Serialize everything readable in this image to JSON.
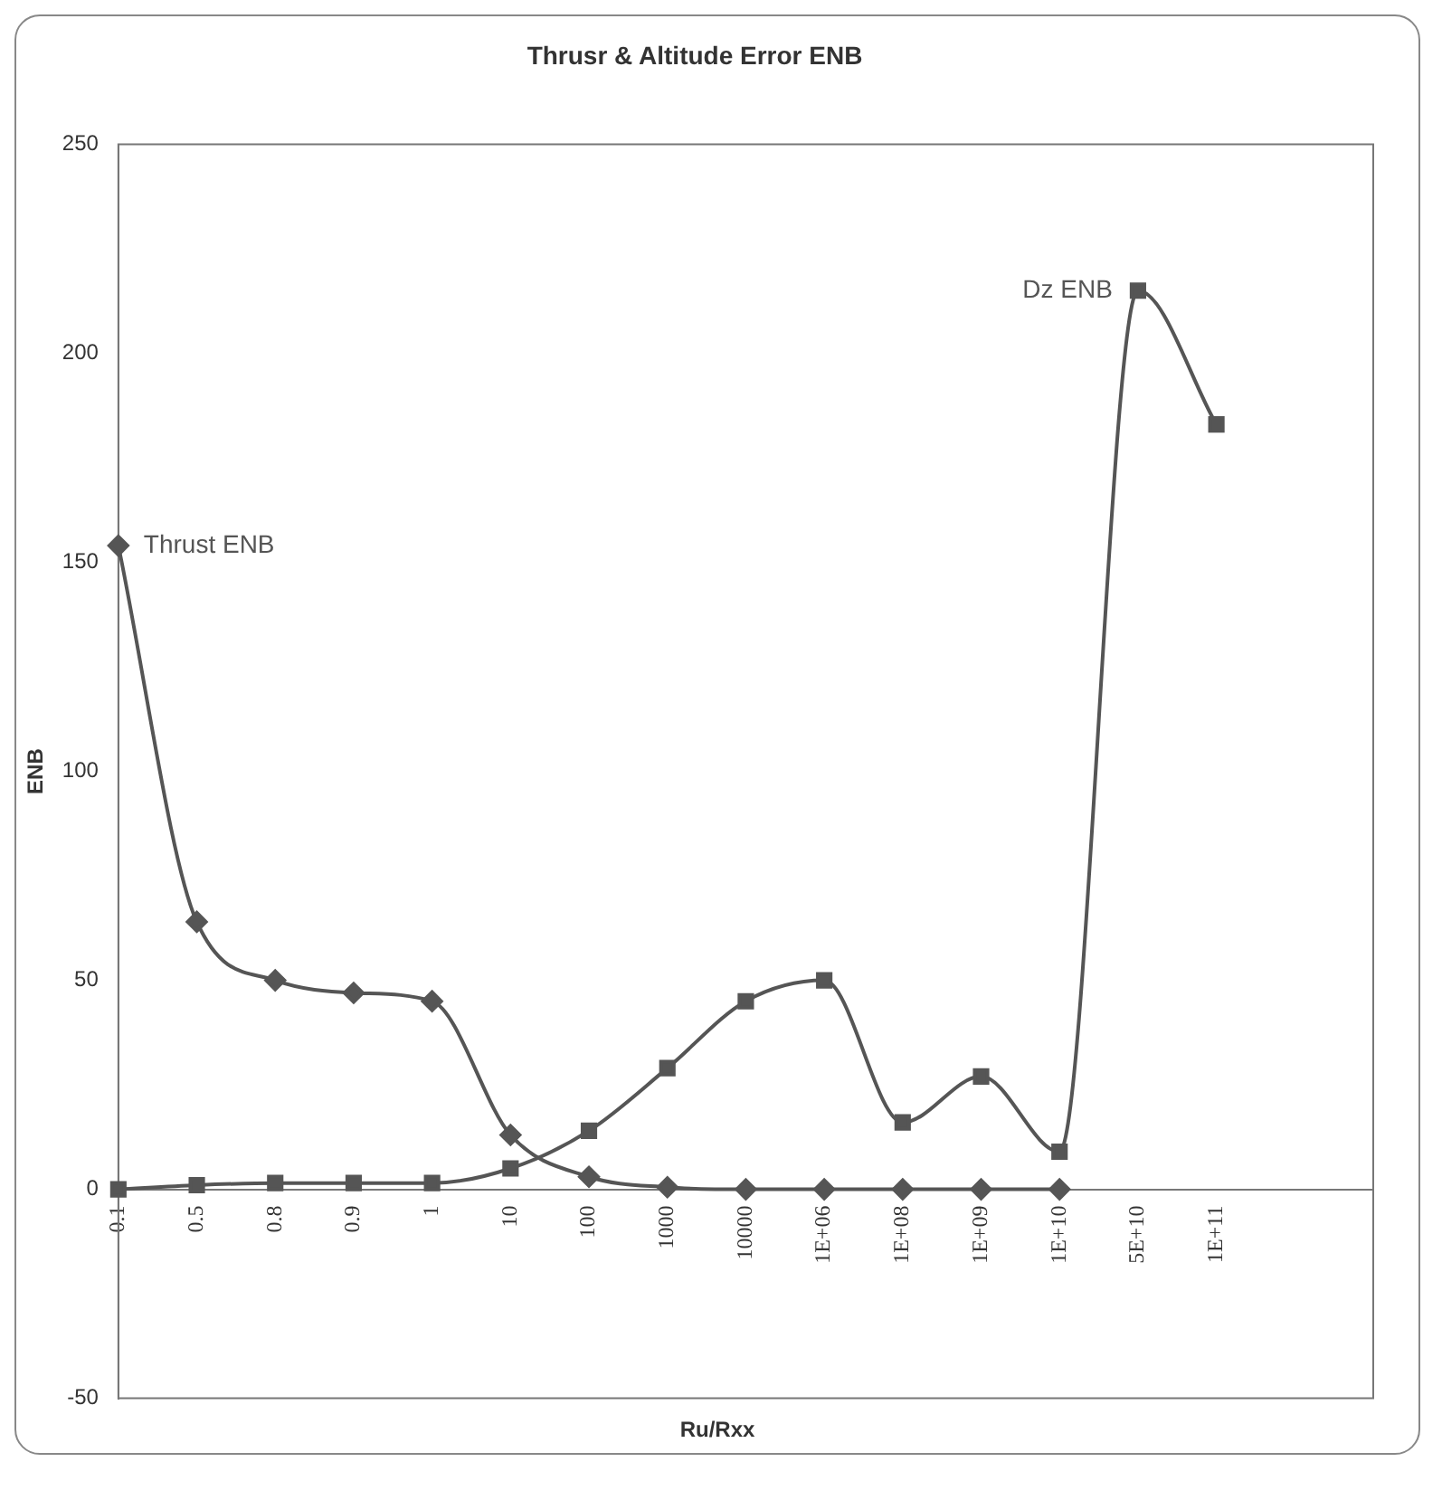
{
  "chart_data": {
    "type": "line",
    "title": "Thrusr & Altitude Error ENB",
    "xlabel": "Ru/Rxx",
    "ylabel": "ENB",
    "categories": [
      "0.1",
      "0.5",
      "0.8",
      "0.9",
      "1",
      "10",
      "100",
      "1000",
      "10000",
      "1E+06",
      "1E+08",
      "1E+09",
      "1E+10",
      "5E+10",
      "1E+11",
      null,
      null
    ],
    "series": [
      {
        "name": "Thrust ENB",
        "color": "#555555",
        "marker": "diamond",
        "values": [
          154,
          64,
          50,
          47,
          45,
          13,
          3,
          0.5,
          0,
          0,
          0,
          0,
          0,
          null,
          null,
          null,
          null
        ]
      },
      {
        "name": "Dz ENB",
        "color": "#555555",
        "marker": "square",
        "values": [
          0,
          1,
          1.5,
          1.5,
          1.5,
          5,
          14,
          29,
          45,
          50,
          16,
          27,
          9,
          215,
          183,
          null,
          null
        ]
      }
    ],
    "ylim": [
      -50,
      250
    ],
    "yticks": [
      -50,
      0,
      50,
      100,
      150,
      200,
      250
    ],
    "grid": false,
    "legend": false
  }
}
